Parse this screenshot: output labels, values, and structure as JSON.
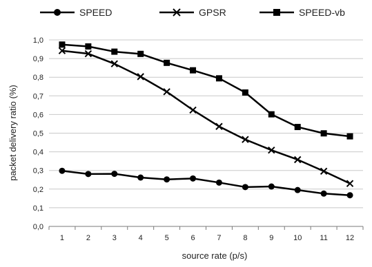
{
  "chart_data": {
    "type": "line",
    "title": "",
    "xlabel": "source rate (p/s)",
    "ylabel": "packet delivery ratio (%)",
    "x": [
      1,
      2,
      3,
      4,
      5,
      6,
      7,
      8,
      9,
      10,
      11,
      12
    ],
    "y_ticks": [
      "0,0",
      "0,1",
      "0,2",
      "0,3",
      "0,4",
      "0,5",
      "0,6",
      "0,7",
      "0,8",
      "0,9",
      "1,0"
    ],
    "ylim": [
      0,
      1.0
    ],
    "grid": "horizontal",
    "legend_position": "top",
    "series": [
      {
        "name": "SPEED",
        "marker": "circle",
        "color": "#000000",
        "values": [
          0.298,
          0.281,
          0.282,
          0.262,
          0.252,
          0.257,
          0.235,
          0.211,
          0.214,
          0.195,
          0.176,
          0.167
        ]
      },
      {
        "name": "GPSR",
        "marker": "x",
        "color": "#000000",
        "values": [
          0.942,
          0.926,
          0.872,
          0.803,
          0.722,
          0.624,
          0.536,
          0.466,
          0.409,
          0.358,
          0.296,
          0.23
        ]
      },
      {
        "name": "SPEED-vb",
        "marker": "square",
        "color": "#000000",
        "values": [
          0.975,
          0.965,
          0.937,
          0.925,
          0.877,
          0.837,
          0.794,
          0.718,
          0.601,
          0.533,
          0.499,
          0.483
        ]
      }
    ]
  }
}
